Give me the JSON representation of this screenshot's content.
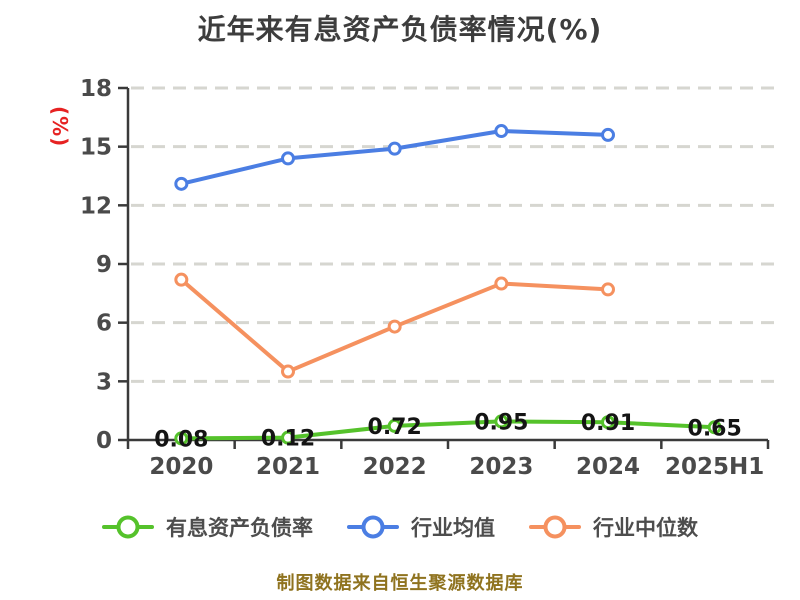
{
  "chart_data": {
    "type": "line",
    "title": "近年来有息资产负债率情况(%)",
    "xlabel": "",
    "ylabel": "(%)",
    "ylim": [
      0,
      18
    ],
    "yticks": [
      0,
      3,
      6,
      9,
      12,
      15,
      18
    ],
    "grid": "horizontal-dashed",
    "legend_position": "bottom",
    "categories": [
      "2020",
      "2021",
      "2022",
      "2023",
      "2024",
      "2025H1"
    ],
    "series": [
      {
        "name": "有息资产负债率",
        "color": "#55c22b",
        "values": [
          0.08,
          0.12,
          0.72,
          0.95,
          0.91,
          0.65
        ],
        "show_data_labels": true
      },
      {
        "name": "行业均值",
        "color": "#4b7ee3",
        "values": [
          13.1,
          14.4,
          14.9,
          15.8,
          15.6,
          null
        ],
        "show_data_labels": false
      },
      {
        "name": "行业中位数",
        "color": "#f5915f",
        "values": [
          8.2,
          3.5,
          5.8,
          8.0,
          7.7,
          null
        ],
        "show_data_labels": false
      }
    ]
  },
  "footer": {
    "source_note": "制图数据来自恒生聚源数据库"
  },
  "colors": {
    "title_text": "#3d3d3d",
    "axis_line": "#3a3a3a",
    "tick_label": "#4a4a4a",
    "gridline": "#d6d6d0",
    "data_label": "#141414",
    "y_axis_label": "#e62222",
    "source_text": "#8f731f",
    "legend_text": "#4d4d4d",
    "marker_fill": "#ffffff"
  }
}
